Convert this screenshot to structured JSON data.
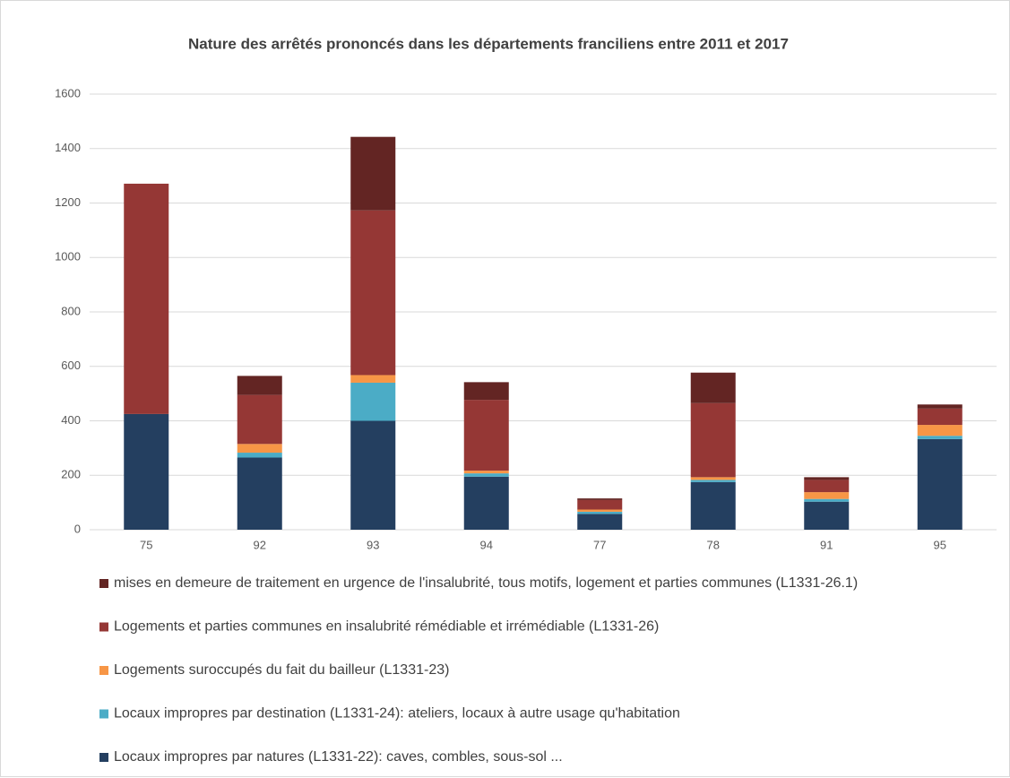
{
  "chart_data": {
    "type": "stacked_bar",
    "title": "Nature des arrêtés prononcés dans les départements franciliens entre 2011  et 2017",
    "categories": [
      "75",
      "92",
      "93",
      "94",
      "77",
      "78",
      "91",
      "95"
    ],
    "series": [
      {
        "name": "Locaux impropres par natures (L1331-22): caves, combles, sous-sol ...",
        "color": "#243f60",
        "values": [
          425,
          265,
          400,
          195,
          58,
          175,
          103,
          333
        ]
      },
      {
        "name": "Locaux impropres par destination (L1331-24): ateliers, locaux à autre usage qu'habitation",
        "color": "#4bacc6",
        "values": [
          0,
          18,
          140,
          12,
          8,
          8,
          10,
          12
        ]
      },
      {
        "name": "Logements suroccupés du fait du bailleur (L1331-23)",
        "color": "#f79646",
        "values": [
          0,
          32,
          28,
          10,
          8,
          10,
          25,
          40
        ]
      },
      {
        "name": "Logements et parties communes en insalubrité rémédiable et irrémédiable (L1331-26)",
        "color": "#953735",
        "values": [
          846,
          180,
          605,
          260,
          35,
          272,
          45,
          60
        ]
      },
      {
        "name": "mises en demeure de traitement en urgence de l'insalubrité, tous motifs,  logement et parties communes (L1331-26.1)",
        "color": "#632523",
        "values": [
          0,
          70,
          270,
          65,
          6,
          112,
          10,
          15
        ]
      }
    ],
    "ylim": [
      0,
      1600
    ],
    "yticks": [
      0,
      200,
      400,
      600,
      800,
      1000,
      1200,
      1400,
      1600
    ],
    "grid": true
  }
}
